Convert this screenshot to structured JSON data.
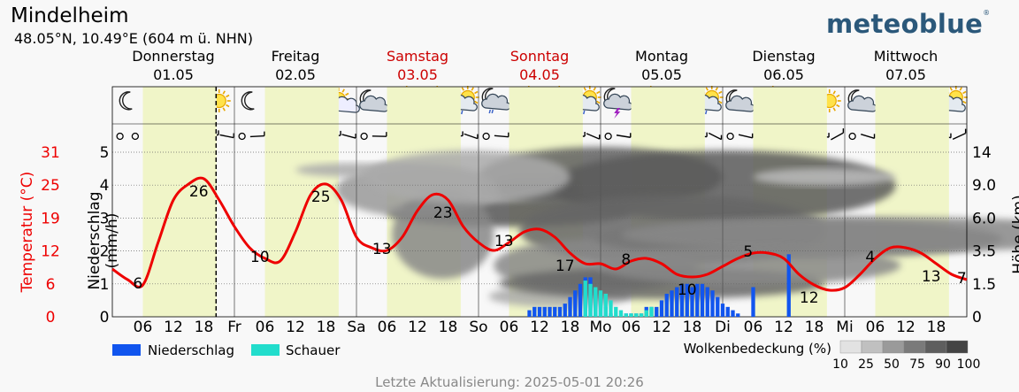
{
  "header": {
    "title": "Mindelheim",
    "coords": "48.05°N, 10.49°E (604 m ü. NHN)",
    "brand": "meteoblue",
    "brand_mark": "®"
  },
  "days": [
    {
      "name": "Donnerstag",
      "date": "01.05",
      "weekend": false,
      "short": ""
    },
    {
      "name": "Freitag",
      "date": "02.05",
      "weekend": false,
      "short": "Fr"
    },
    {
      "name": "Samstag",
      "date": "03.05",
      "weekend": true,
      "short": "Sa"
    },
    {
      "name": "Sonntag",
      "date": "04.05",
      "weekend": true,
      "short": "So"
    },
    {
      "name": "Montag",
      "date": "05.05",
      "weekend": false,
      "short": "Mo"
    },
    {
      "name": "Dienstag",
      "date": "06.05",
      "weekend": false,
      "short": "Di"
    },
    {
      "name": "Mittwoch",
      "date": "07.05",
      "weekend": false,
      "short": "Mi"
    }
  ],
  "hour_ticks": [
    "06",
    "12",
    "18"
  ],
  "colors": {
    "weekend": "#cc0000",
    "temperature": "#ee0000",
    "precip": "#1155ee",
    "showers": "#22ddcc",
    "daylight": "#f0f5c8",
    "brand": "#2b587a"
  },
  "axes": {
    "temp_label": "Temperatur (°C)",
    "temp_ticks": [
      "0",
      "6",
      "12",
      "19",
      "25",
      "31"
    ],
    "precip_label": "Niederschlag (mm/h)",
    "precip_ticks": [
      "0",
      "1",
      "2",
      "3",
      "4",
      "5"
    ],
    "height_label": "Höhe (km)",
    "height_ticks": [
      "0",
      "1.5",
      "3.5",
      "6.0",
      "9.0",
      "14"
    ]
  },
  "legend": {
    "precip": "Niederschlag",
    "showers": "Schauer",
    "clouds": "Wolkenbedeckung (%)",
    "cloud_levels": [
      "10",
      "25",
      "50",
      "75",
      "90",
      "100"
    ]
  },
  "footer": "Letzte Aktualisierung: 2025-05-01 20:26",
  "chart_data": {
    "type": "line",
    "title": "",
    "x_unit": "hours since 2025-05-01 00:00",
    "temperature_series": {
      "name": "Temperatur",
      "x": [
        0,
        3,
        6,
        9,
        12,
        15,
        18,
        21,
        24,
        27,
        30,
        33,
        36,
        39,
        42,
        45,
        48,
        51,
        54,
        57,
        60,
        63,
        66,
        69,
        72,
        75,
        78,
        81,
        84,
        87,
        90,
        93,
        96,
        99,
        102,
        105,
        108,
        111,
        114,
        117,
        120,
        123,
        126,
        129,
        132,
        135,
        138,
        141,
        144,
        147,
        150,
        153,
        156,
        159,
        162,
        165,
        168
      ],
      "values": [
        9,
        7,
        6,
        14,
        22,
        25,
        26,
        22,
        17,
        13,
        11,
        10.5,
        16,
        23,
        25,
        22,
        15,
        13,
        12.5,
        15,
        20,
        23,
        22,
        17,
        14,
        12.5,
        14,
        16,
        16.5,
        15,
        12,
        10,
        10,
        9,
        10.5,
        11,
        10,
        8,
        7.5,
        8,
        9.5,
        11,
        12,
        12,
        11,
        8,
        6,
        5,
        5.5,
        8,
        11,
        13,
        13,
        12,
        10,
        8,
        7
      ]
    },
    "temperature_labels": [
      {
        "x": 5,
        "text": "6"
      },
      {
        "x": 17,
        "text": "26"
      },
      {
        "x": 29,
        "text": "10"
      },
      {
        "x": 41,
        "text": "25"
      },
      {
        "x": 53,
        "text": "13"
      },
      {
        "x": 65,
        "text": "23"
      },
      {
        "x": 77,
        "text": "13"
      },
      {
        "x": 89,
        "text": "17"
      },
      {
        "x": 101,
        "text": "8"
      },
      {
        "x": 113,
        "text": "10"
      },
      {
        "x": 125,
        "text": "5"
      },
      {
        "x": 137,
        "text": "12"
      },
      {
        "x": 149,
        "text": "4"
      },
      {
        "x": 161,
        "text": "13"
      },
      {
        "x": 167,
        "text": "7"
      }
    ],
    "precipitation_mm_h": {
      "x": [
        82,
        83,
        84,
        85,
        86,
        87,
        88,
        89,
        90,
        91,
        92,
        93,
        94,
        95,
        96,
        97,
        98,
        99,
        100,
        101,
        102,
        103,
        104,
        105,
        106,
        107,
        108,
        109,
        110,
        111,
        112,
        113,
        114,
        115,
        116,
        117,
        118,
        119,
        120,
        121,
        122,
        123,
        124,
        125,
        126,
        127,
        128,
        129,
        130,
        131,
        132,
        133,
        134,
        135,
        136,
        137,
        138,
        139,
        140,
        141,
        142,
        143,
        144
      ],
      "values": [
        0.2,
        0.3,
        0.3,
        0.3,
        0.3,
        0.3,
        0.3,
        0.4,
        0.6,
        0.8,
        1.0,
        1.2,
        1.2,
        0.8,
        0.6,
        0.3,
        0.1,
        0.0,
        0.0,
        0.1,
        0.1,
        0.1,
        0.1,
        0.3,
        0.3,
        0.3,
        0.5,
        0.7,
        0.8,
        0.9,
        1.0,
        1.0,
        0.9,
        1.0,
        1.0,
        0.9,
        0.8,
        0.6,
        0.4,
        0.3,
        0.2,
        0.1,
        0.0,
        0.0,
        0.9,
        0.0,
        0.0,
        0.0,
        0.0,
        0.0,
        0.0,
        1.9,
        0.0,
        0.0,
        0.0,
        0.0,
        0.0,
        0.0,
        0.0,
        0.0,
        0.0,
        0.0,
        0.0
      ]
    },
    "showers_mm_h": {
      "x": [
        93,
        94,
        95,
        96,
        97,
        98,
        99,
        100,
        101,
        102,
        103,
        104,
        105,
        106
      ],
      "values": [
        1.1,
        1.0,
        0.9,
        0.8,
        0.7,
        0.5,
        0.3,
        0.2,
        0.1,
        0.1,
        0.1,
        0.1,
        0.2,
        0.3
      ]
    },
    "current_time_x": 20.4,
    "xlim": [
      0,
      168
    ],
    "temp_ylim": [
      0,
      31
    ],
    "precip_ylim": [
      0,
      5
    ]
  }
}
